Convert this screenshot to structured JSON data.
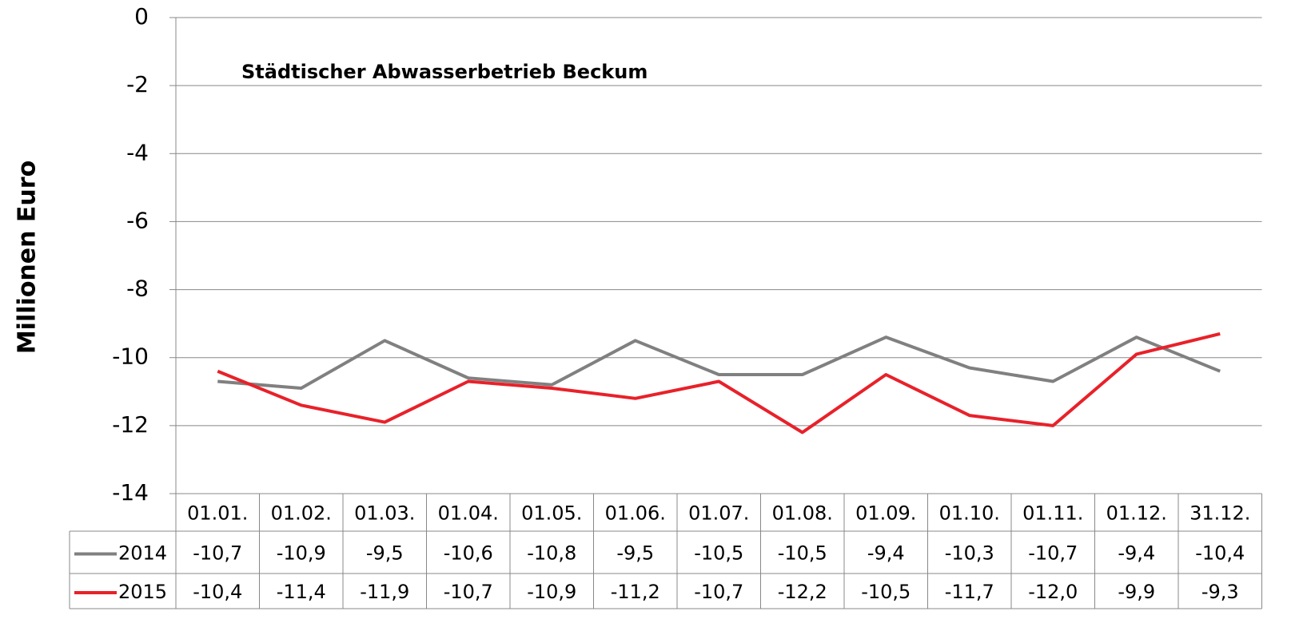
{
  "chart_data": {
    "type": "line",
    "title": "Städtischer Abwasserbetrieb Beckum",
    "y_label": "Millionen Euro",
    "categories": [
      "01.01.",
      "01.02.",
      "01.03.",
      "01.04.",
      "01.05.",
      "01.06.",
      "01.07.",
      "01.08.",
      "01.09.",
      "01.10.",
      "01.11.",
      "01.12.",
      "31.12."
    ],
    "series": [
      {
        "name": "2014",
        "color": "#808080",
        "values": [
          -10.7,
          -10.9,
          -9.5,
          -10.6,
          -10.8,
          -9.5,
          -10.5,
          -10.5,
          -9.4,
          -10.3,
          -10.7,
          -9.4,
          -10.4
        ],
        "value_labels": [
          "-10,7",
          "-10,9",
          "-9,5",
          "-10,6",
          "-10,8",
          "-9,5",
          "-10,5",
          "-10,5",
          "-9,4",
          "-10,3",
          "-10,7",
          "-9,4",
          "-10,4"
        ]
      },
      {
        "name": "2015",
        "color": "#e8212a",
        "values": [
          -10.4,
          -11.4,
          -11.9,
          -10.7,
          -10.9,
          -11.2,
          -10.7,
          -12.2,
          -10.5,
          -11.7,
          -12.0,
          -9.9,
          -9.3
        ],
        "value_labels": [
          "-10,4",
          "-11,4",
          "-11,9",
          "-10,7",
          "-10,9",
          "-11,2",
          "-10,7",
          "-12,2",
          "-10,5",
          "-11,7",
          "-12,0",
          "-9,9",
          "-9,3"
        ]
      }
    ],
    "ylim": [
      -14,
      0
    ],
    "yticks": [
      0,
      -2,
      -4,
      -6,
      -8,
      -10,
      -12,
      -14
    ],
    "grid": true
  }
}
